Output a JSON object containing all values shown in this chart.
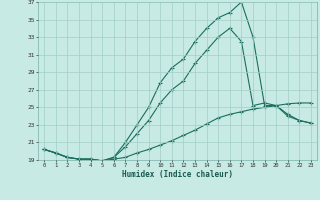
{
  "xlabel": "Humidex (Indice chaleur)",
  "ylabel": "",
  "xlim": [
    -0.5,
    23.5
  ],
  "ylim": [
    19,
    37
  ],
  "xticks": [
    0,
    1,
    2,
    3,
    4,
    5,
    6,
    7,
    8,
    9,
    10,
    11,
    12,
    13,
    14,
    15,
    16,
    17,
    18,
    19,
    20,
    21,
    22,
    23
  ],
  "yticks": [
    19,
    21,
    23,
    25,
    27,
    29,
    31,
    33,
    35,
    37
  ],
  "bg_color": "#c8eae4",
  "grid_color": "#a0cec6",
  "line_color": "#1a6e5e",
  "line1_x": [
    0,
    1,
    2,
    3,
    4,
    5,
    6,
    7,
    8,
    9,
    10,
    11,
    12,
    13,
    14,
    15,
    16,
    17,
    18,
    19,
    20,
    21,
    22,
    23
  ],
  "line1_y": [
    20.2,
    19.8,
    19.3,
    19.1,
    19.1,
    18.9,
    19.1,
    19.3,
    19.8,
    20.2,
    20.7,
    21.2,
    21.8,
    22.4,
    23.1,
    23.8,
    24.2,
    24.5,
    24.8,
    25.0,
    25.2,
    25.4,
    25.5,
    25.5
  ],
  "line2_x": [
    0,
    1,
    2,
    3,
    4,
    5,
    6,
    7,
    8,
    9,
    10,
    11,
    12,
    13,
    14,
    15,
    16,
    17,
    18,
    19,
    20,
    21,
    22,
    23
  ],
  "line2_y": [
    20.2,
    19.8,
    19.3,
    19.1,
    19.1,
    18.9,
    19.3,
    20.5,
    22.0,
    23.5,
    25.5,
    27.0,
    28.0,
    30.0,
    31.5,
    33.0,
    34.0,
    32.5,
    25.2,
    25.5,
    25.2,
    24.0,
    23.5,
    23.2
  ],
  "line3_x": [
    0,
    1,
    2,
    3,
    4,
    5,
    6,
    7,
    8,
    9,
    10,
    11,
    12,
    13,
    14,
    15,
    16,
    17,
    18,
    19,
    20,
    21,
    22,
    23
  ],
  "line3_y": [
    20.2,
    19.8,
    19.3,
    19.1,
    19.1,
    18.9,
    19.3,
    21.0,
    23.0,
    25.0,
    27.8,
    29.5,
    30.5,
    32.5,
    34.0,
    35.2,
    35.8,
    37.0,
    33.0,
    25.2,
    25.2,
    24.2,
    23.5,
    23.2
  ]
}
